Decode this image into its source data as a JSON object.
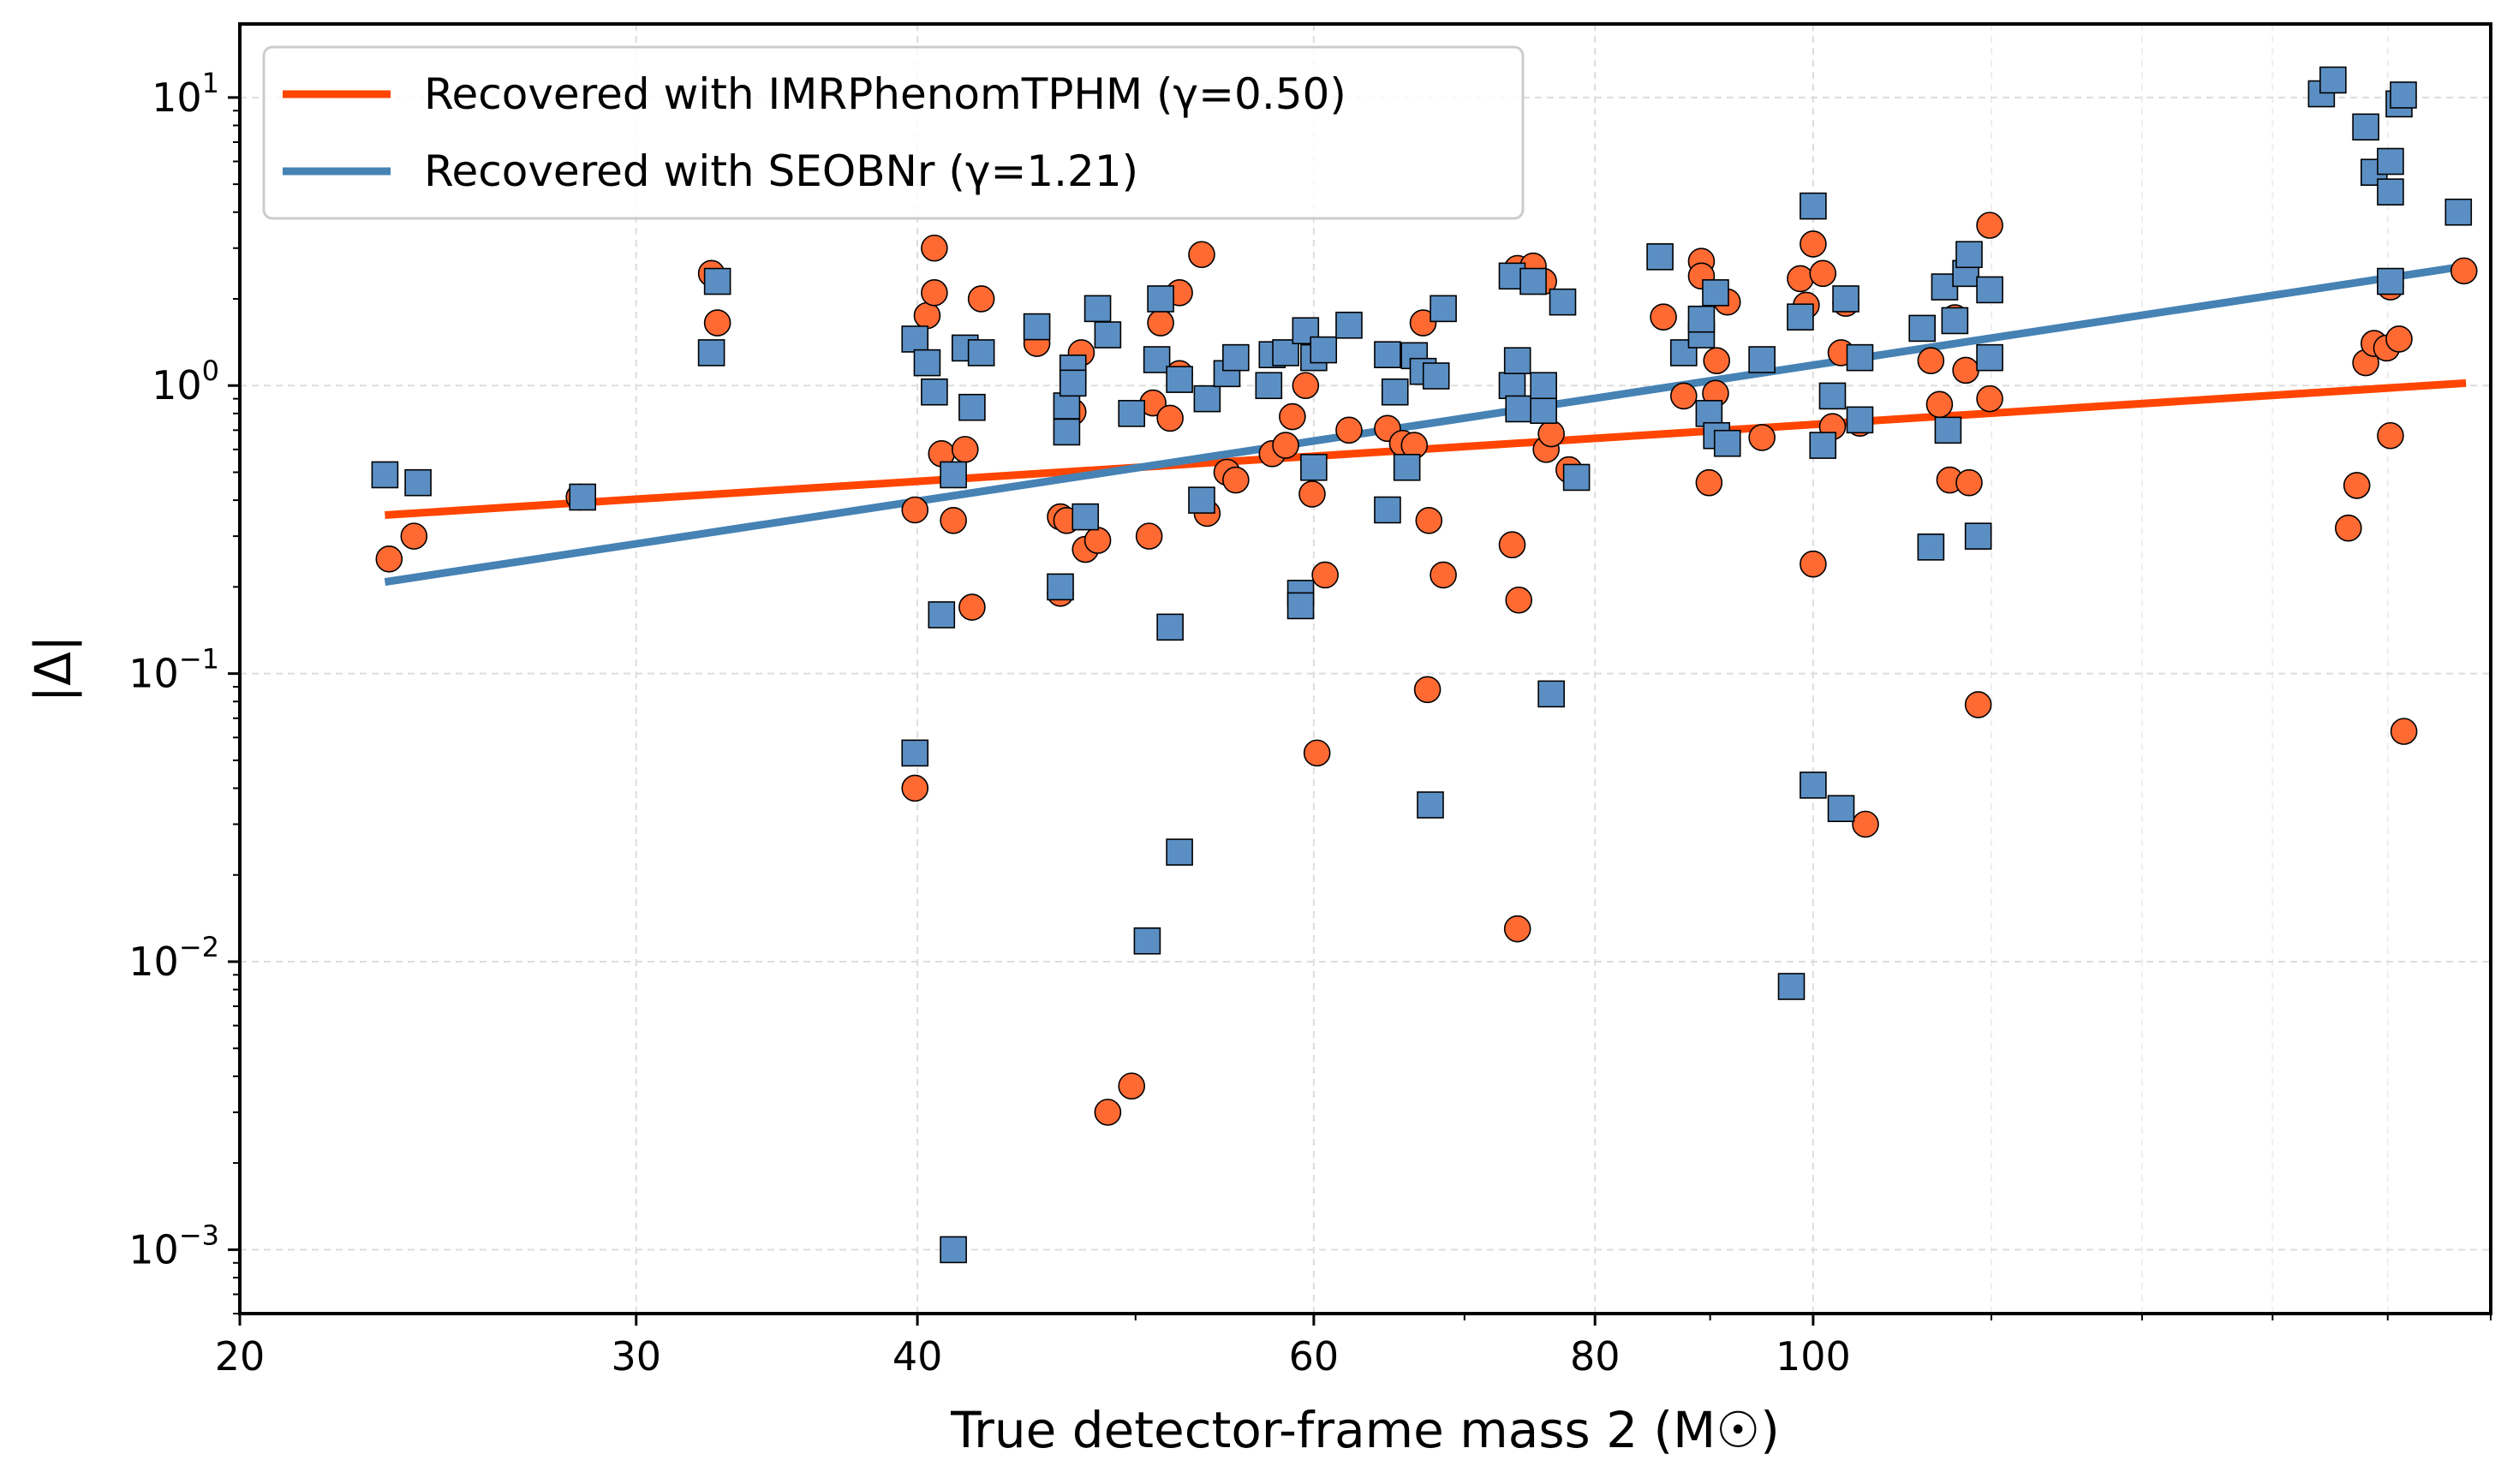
{
  "chart_data": {
    "type": "scatter",
    "xlabel": "True detector-frame mass 2 (M☉)",
    "ylabel": "|Δ|",
    "xscale": "log",
    "yscale": "log",
    "xlim": [
      20,
      200
    ],
    "ylim": [
      0.0006,
      18
    ],
    "x_ticks": [
      {
        "v": 20,
        "label": "20"
      },
      {
        "v": 30,
        "label": "30"
      },
      {
        "v": 40,
        "label": "40"
      },
      {
        "v": 60,
        "label": "60"
      },
      {
        "v": 80,
        "label": "80"
      },
      {
        "v": 100,
        "label": "100"
      }
    ],
    "y_ticks": [
      {
        "v": 0.001,
        "mant": "10",
        "exp": "−3"
      },
      {
        "v": 0.01,
        "mant": "10",
        "exp": "−2"
      },
      {
        "v": 0.1,
        "mant": "10",
        "exp": "−1"
      },
      {
        "v": 1,
        "mant": "10",
        "exp": "0"
      },
      {
        "v": 10,
        "mant": "10",
        "exp": "1"
      }
    ],
    "grid": true,
    "legend_position": "top-left",
    "series": [
      {
        "name": "Recovered with IMRPhenomTPHM (γ=0.50)",
        "color": "#ff4500",
        "marker_color": "#ff6a33",
        "marker": "circle",
        "fit": {
          "x": [
            23.2,
            195
          ],
          "y": [
            0.355,
            1.02
          ]
        },
        "points": [
          [
            23.3,
            0.25
          ],
          [
            23.9,
            0.3
          ],
          [
            28.3,
            0.41
          ],
          [
            32.4,
            2.45
          ],
          [
            32.6,
            1.65
          ],
          [
            39.9,
            0.37
          ],
          [
            39.9,
            0.04
          ],
          [
            40.4,
            1.75
          ],
          [
            40.7,
            2.1
          ],
          [
            40.7,
            3.0
          ],
          [
            41.0,
            0.58
          ],
          [
            41.5,
            0.34
          ],
          [
            42.0,
            0.6
          ],
          [
            42.3,
            0.17
          ],
          [
            42.7,
            2.0
          ],
          [
            45.2,
            1.4
          ],
          [
            46.3,
            0.35
          ],
          [
            46.6,
            0.34
          ],
          [
            46.9,
            0.81
          ],
          [
            46.3,
            0.19
          ],
          [
            47.3,
            1.3
          ],
          [
            47.5,
            0.27
          ],
          [
            48.1,
            0.29
          ],
          [
            48.6,
            0.003
          ],
          [
            49.8,
            0.0037
          ],
          [
            50.7,
            0.3
          ],
          [
            50.9,
            0.87
          ],
          [
            51.3,
            1.65
          ],
          [
            51.8,
            0.77
          ],
          [
            52.3,
            1.1
          ],
          [
            52.3,
            2.1
          ],
          [
            53.5,
            2.85
          ],
          [
            53.8,
            0.36
          ],
          [
            54.9,
            0.5
          ],
          [
            55.4,
            0.47
          ],
          [
            57.5,
            0.58
          ],
          [
            58.3,
            0.62
          ],
          [
            58.7,
            0.78
          ],
          [
            59.5,
            1.0
          ],
          [
            59.9,
            0.42
          ],
          [
            60.2,
            0.053
          ],
          [
            60.7,
            0.22
          ],
          [
            62.2,
            0.7
          ],
          [
            64.7,
            0.71
          ],
          [
            65.7,
            0.63
          ],
          [
            66.5,
            0.62
          ],
          [
            67.1,
            1.65
          ],
          [
            67.5,
            0.34
          ],
          [
            67.4,
            0.088
          ],
          [
            68.5,
            0.22
          ],
          [
            73.5,
            0.28
          ],
          [
            74.0,
            0.18
          ],
          [
            73.9,
            0.013
          ],
          [
            73.9,
            2.55
          ],
          [
            75.1,
            2.6
          ],
          [
            75.9,
            2.3
          ],
          [
            76.1,
            0.6
          ],
          [
            76.5,
            0.68
          ],
          [
            77.9,
            0.51
          ],
          [
            85.8,
            1.73
          ],
          [
            87.6,
            0.92
          ],
          [
            89.2,
            2.7
          ],
          [
            89.2,
            2.4
          ],
          [
            89.9,
            0.46
          ],
          [
            90.5,
            0.94
          ],
          [
            90.6,
            1.22
          ],
          [
            91.6,
            1.95
          ],
          [
            94.9,
            0.66
          ],
          [
            98.7,
            2.35
          ],
          [
            99.3,
            1.9
          ],
          [
            100.0,
            3.1
          ],
          [
            100.0,
            0.24
          ],
          [
            101.0,
            2.45
          ],
          [
            102.0,
            0.72
          ],
          [
            102.9,
            1.3
          ],
          [
            103.4,
            1.93
          ],
          [
            105.5,
            0.03
          ],
          [
            104.9,
            0.74
          ],
          [
            112.8,
            1.22
          ],
          [
            113.8,
            0.86
          ],
          [
            115.0,
            0.47
          ],
          [
            115.6,
            1.72
          ],
          [
            116.9,
            1.13
          ],
          [
            117.3,
            0.46
          ],
          [
            118.4,
            0.078
          ],
          [
            119.8,
            3.6
          ],
          [
            119.8,
            0.9
          ],
          [
            172.9,
            0.32
          ],
          [
            174.4,
            0.45
          ],
          [
            176.0,
            1.2
          ],
          [
            177.5,
            1.4
          ],
          [
            179.8,
            1.35
          ],
          [
            180.5,
            2.2
          ],
          [
            180.5,
            0.67
          ],
          [
            182.1,
            1.45
          ],
          [
            183.0,
            0.063
          ],
          [
            194.6,
            2.5
          ]
        ]
      },
      {
        "name": "Recovered with SEOBNr (γ=1.21)",
        "color": "#4682b4",
        "marker_color": "#5b8fc4",
        "marker": "square",
        "fit": {
          "x": [
            23.2,
            195
          ],
          "y": [
            0.208,
            2.6
          ]
        },
        "points": [
          [
            23.2,
            0.49
          ],
          [
            24.0,
            0.46
          ],
          [
            28.4,
            0.41
          ],
          [
            32.4,
            1.3
          ],
          [
            32.6,
            2.3
          ],
          [
            39.9,
            1.45
          ],
          [
            39.9,
            0.053
          ],
          [
            40.4,
            1.2
          ],
          [
            40.7,
            0.95
          ],
          [
            41.0,
            0.16
          ],
          [
            41.5,
            0.001
          ],
          [
            41.5,
            0.49
          ],
          [
            42.0,
            1.35
          ],
          [
            42.3,
            0.84
          ],
          [
            42.7,
            1.3
          ],
          [
            45.2,
            1.6
          ],
          [
            46.3,
            0.2
          ],
          [
            46.6,
            0.85
          ],
          [
            46.6,
            0.69
          ],
          [
            46.9,
            1.15
          ],
          [
            46.9,
            1.02
          ],
          [
            47.5,
            0.35
          ],
          [
            48.1,
            1.85
          ],
          [
            48.6,
            1.5
          ],
          [
            49.8,
            0.8
          ],
          [
            50.6,
            0.0118
          ],
          [
            51.1,
            1.23
          ],
          [
            51.3,
            2.0
          ],
          [
            51.8,
            0.145
          ],
          [
            52.3,
            0.024
          ],
          [
            52.3,
            1.05
          ],
          [
            53.5,
            0.4
          ],
          [
            53.8,
            0.9
          ],
          [
            54.9,
            1.1
          ],
          [
            55.4,
            1.25
          ],
          [
            57.3,
            1.0
          ],
          [
            57.5,
            1.28
          ],
          [
            58.3,
            1.3
          ],
          [
            59.2,
            0.19
          ],
          [
            59.2,
            0.172
          ],
          [
            59.5,
            1.55
          ],
          [
            60.0,
            1.25
          ],
          [
            60.0,
            0.52
          ],
          [
            60.6,
            1.33
          ],
          [
            62.2,
            1.62
          ],
          [
            64.7,
            1.28
          ],
          [
            64.7,
            0.37
          ],
          [
            65.2,
            0.95
          ],
          [
            66.0,
            0.52
          ],
          [
            66.5,
            1.27
          ],
          [
            67.1,
            1.12
          ],
          [
            67.6,
            0.035
          ],
          [
            68.0,
            1.08
          ],
          [
            68.5,
            1.85
          ],
          [
            73.5,
            2.4
          ],
          [
            73.5,
            1.0
          ],
          [
            73.9,
            1.22
          ],
          [
            74.0,
            0.83
          ],
          [
            75.1,
            2.3
          ],
          [
            75.9,
            0.82
          ],
          [
            75.9,
            1.0
          ],
          [
            76.5,
            0.085
          ],
          [
            77.4,
            1.95
          ],
          [
            78.5,
            0.48
          ],
          [
            85.5,
            2.8
          ],
          [
            87.6,
            1.3
          ],
          [
            89.2,
            1.5
          ],
          [
            89.2,
            1.7
          ],
          [
            89.9,
            0.8
          ],
          [
            90.5,
            2.1
          ],
          [
            90.6,
            0.67
          ],
          [
            91.6,
            0.63
          ],
          [
            94.9,
            1.23
          ],
          [
            97.8,
            0.0082
          ],
          [
            98.7,
            1.73
          ],
          [
            100.0,
            4.2
          ],
          [
            100.0,
            0.041
          ],
          [
            101.0,
            0.62
          ],
          [
            102.0,
            0.92
          ],
          [
            102.9,
            0.034
          ],
          [
            103.4,
            2.0
          ],
          [
            104.9,
            1.25
          ],
          [
            104.9,
            0.76
          ],
          [
            111.8,
            1.58
          ],
          [
            112.8,
            0.275
          ],
          [
            114.4,
            2.2
          ],
          [
            115.6,
            1.68
          ],
          [
            116.9,
            2.45
          ],
          [
            117.3,
            2.85
          ],
          [
            118.4,
            0.3
          ],
          [
            119.8,
            2.15
          ],
          [
            119.8,
            1.25
          ],
          [
            114.8,
            0.7
          ],
          [
            168.2,
            10.3
          ],
          [
            170.2,
            11.5
          ],
          [
            176.0,
            7.9
          ],
          [
            177.5,
            5.5
          ],
          [
            180.5,
            6.0
          ],
          [
            180.5,
            4.7
          ],
          [
            180.5,
            2.3
          ],
          [
            182.1,
            9.5
          ],
          [
            182.9,
            10.2
          ],
          [
            193.5,
            4.0
          ]
        ]
      }
    ]
  }
}
